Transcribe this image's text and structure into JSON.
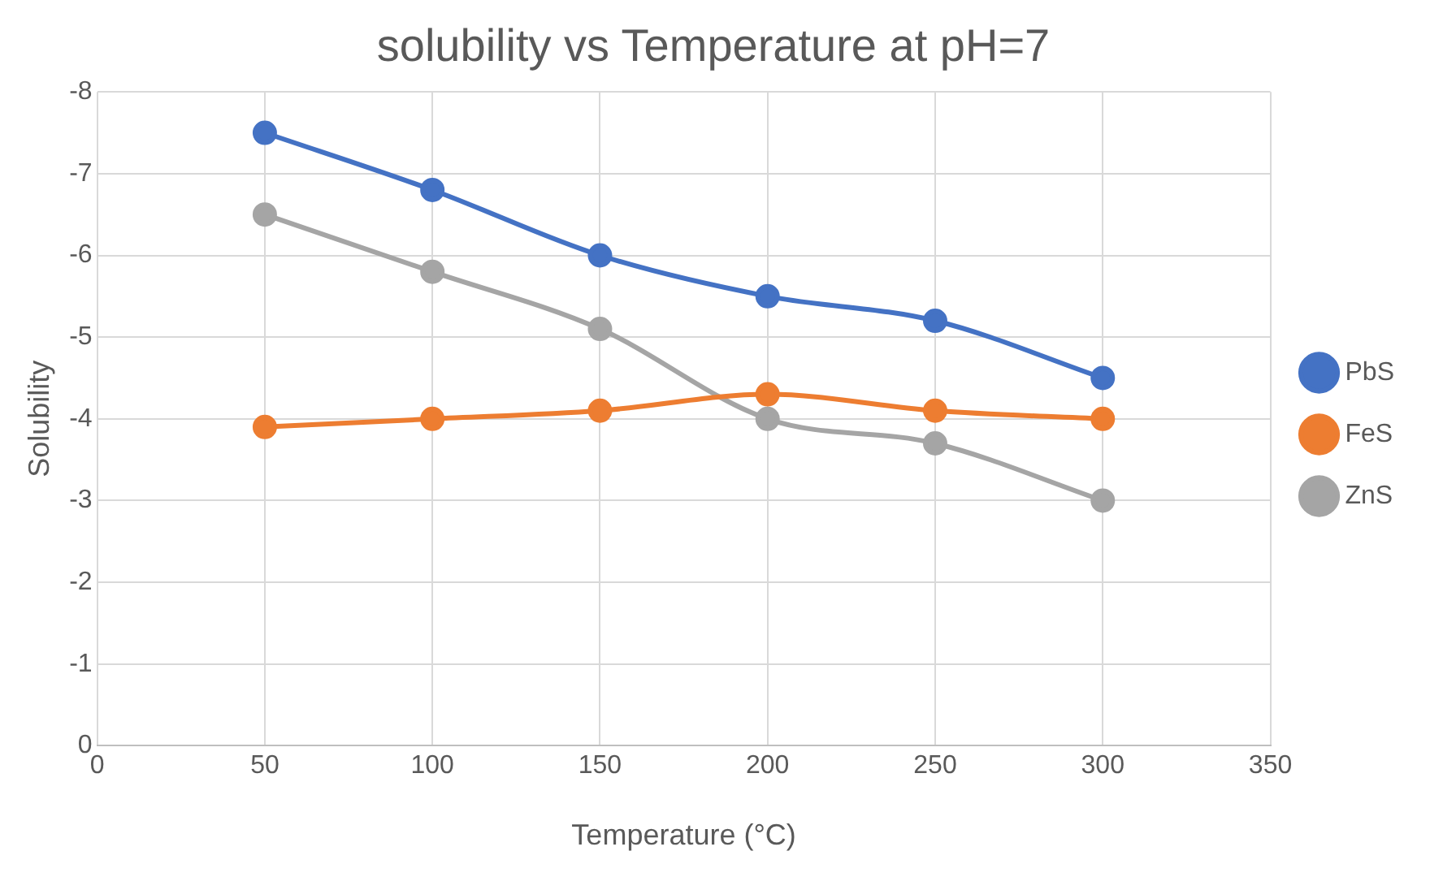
{
  "chart_data": {
    "type": "line",
    "title": "solubility vs Temperature at pH=7",
    "xlabel": "Temperature (°C)",
    "ylabel": "Solubility",
    "x": [
      50,
      100,
      150,
      200,
      250,
      300
    ],
    "series": [
      {
        "name": "PbS",
        "color": "#4472c4",
        "values": [
          -7.5,
          -6.8,
          -6,
          -5.5,
          -5.2,
          -4.5
        ]
      },
      {
        "name": "FeS",
        "color": "#ed7d31",
        "values": [
          -3.9,
          -4,
          -4.1,
          -4.3,
          -4.1,
          -4
        ]
      },
      {
        "name": "ZnS",
        "color": "#a5a5a5",
        "values": [
          -6.5,
          -5.8,
          -5.1,
          -4,
          -3.7,
          -3
        ]
      }
    ],
    "xlim": [
      0,
      350
    ],
    "xticks": [
      0,
      50,
      100,
      150,
      200,
      250,
      300,
      350
    ],
    "ylim": [
      0,
      -8
    ],
    "yticks": [
      0,
      -1,
      -2,
      -3,
      -4,
      -5,
      -6,
      -7,
      -8
    ],
    "grid": true,
    "legend": "right",
    "marker": "circle"
  }
}
